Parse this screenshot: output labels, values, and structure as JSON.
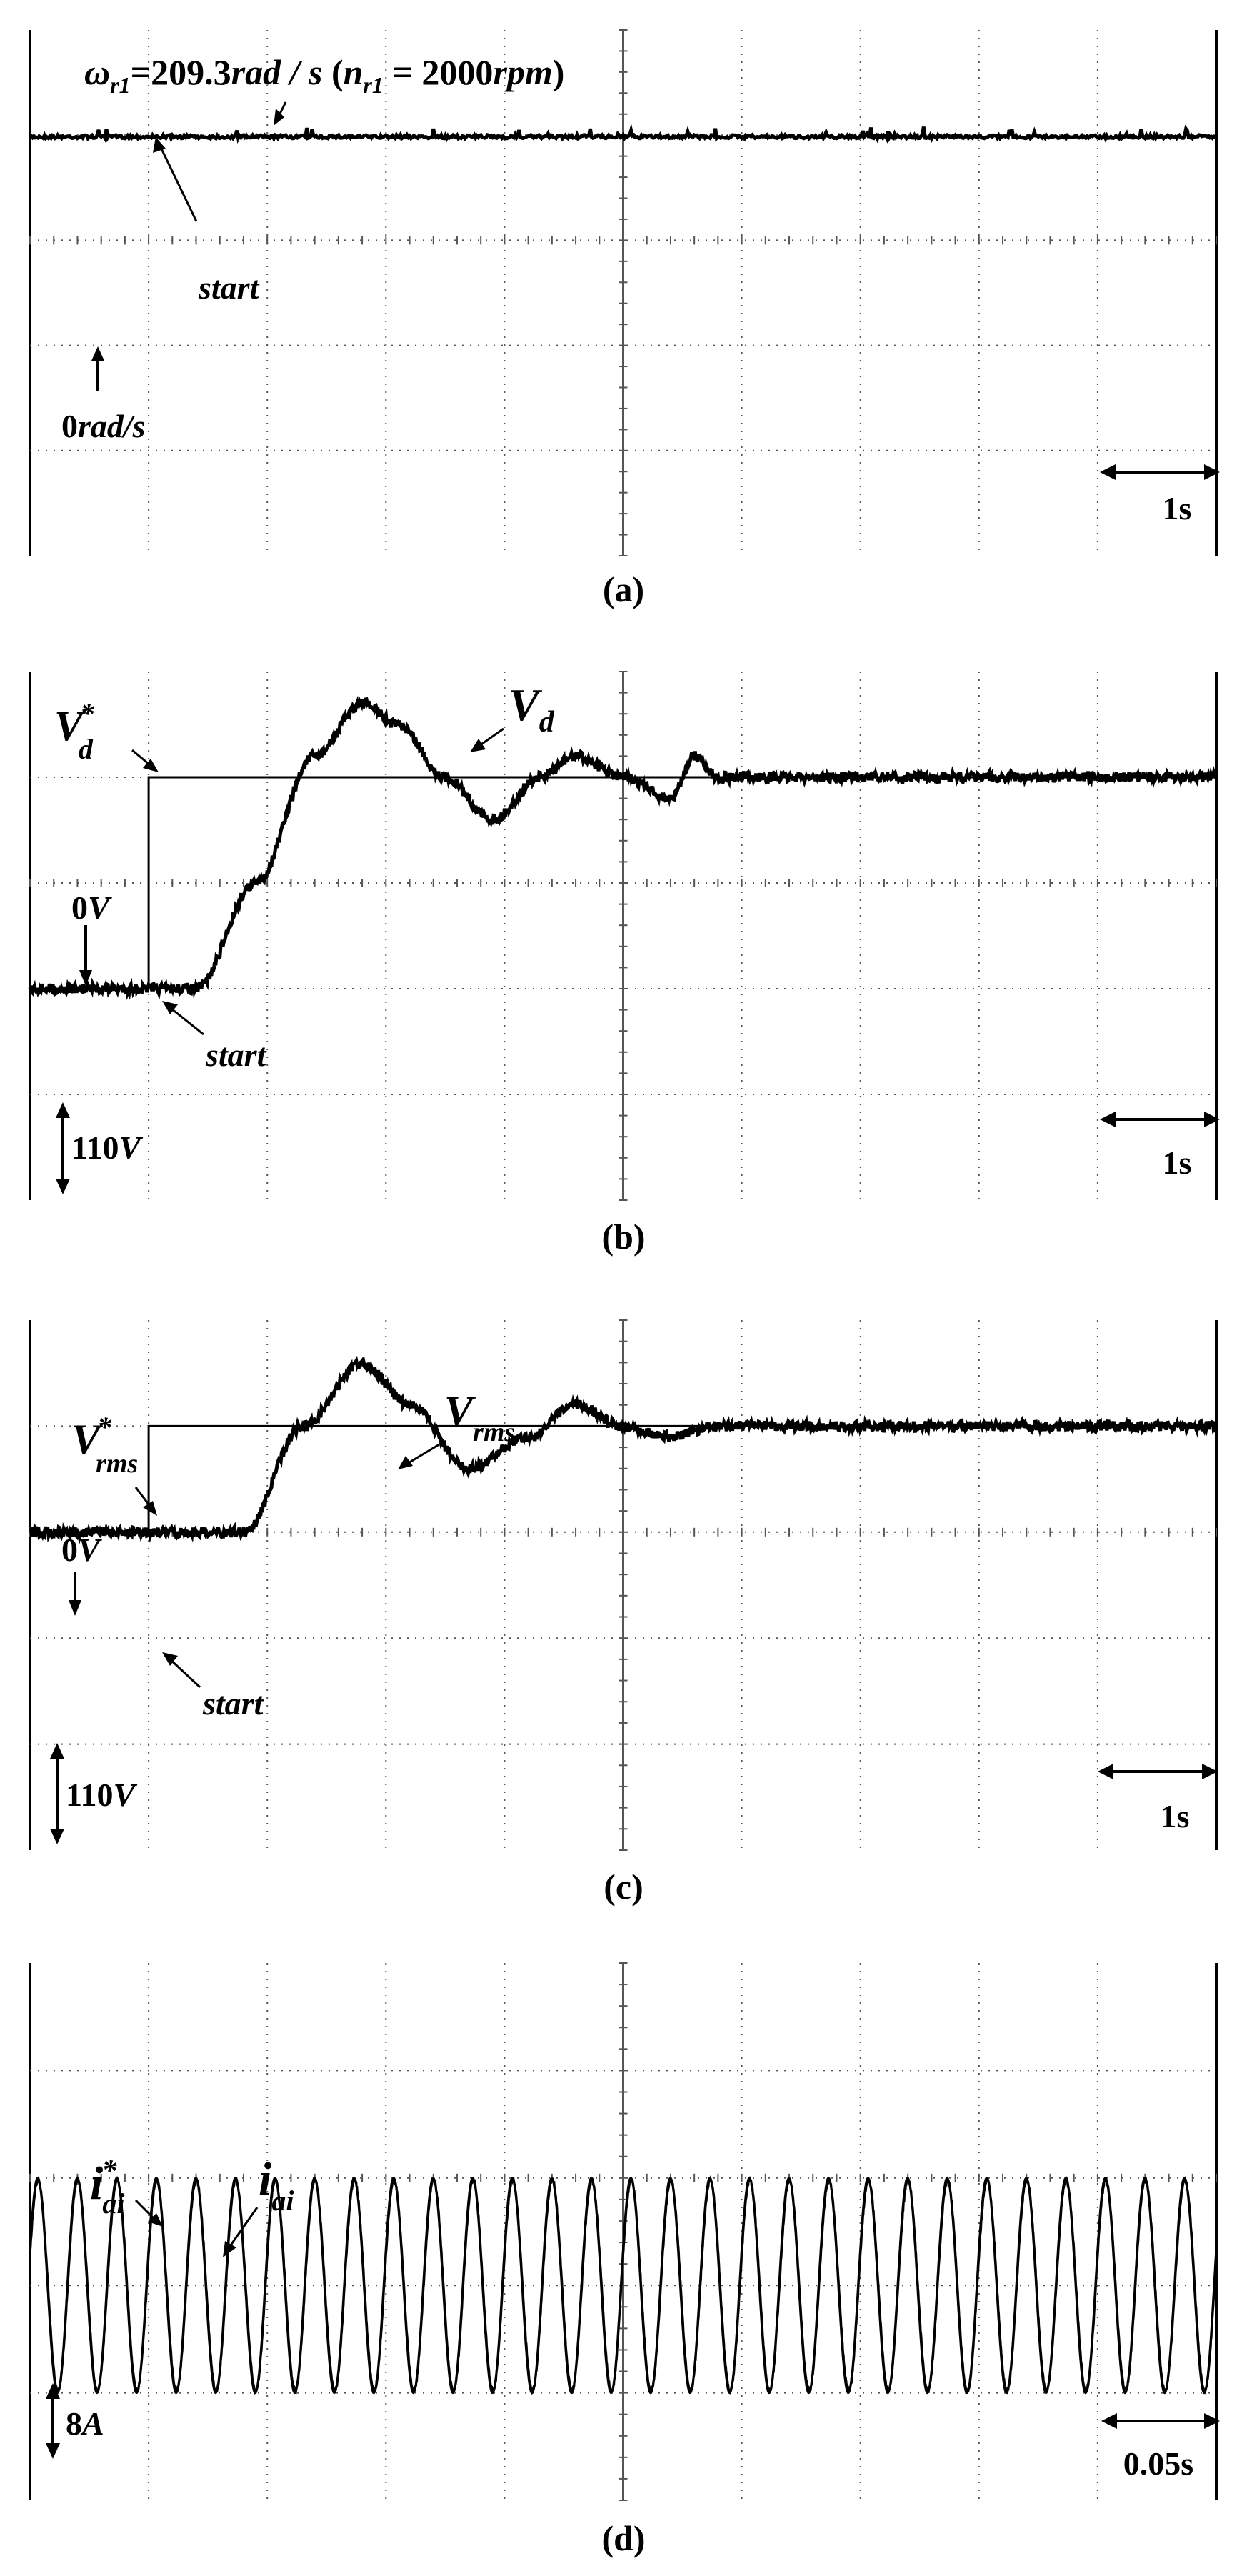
{
  "panels": [
    {
      "caption": "(a)",
      "scale": "1s",
      "labels": {
        "top": {
          "omega": "ω",
          "r1": "r1",
          "eq": "=209.3",
          "unit": "rad / s",
          "paren_open": " (",
          "n": "n",
          "nsub": "r1",
          "neq": " = 2000",
          "rpm": "rpm",
          "paren_close": ")"
        },
        "start": "start",
        "zero_num": "0",
        "zero_unit": "rad/s"
      }
    },
    {
      "caption": "(b)",
      "scale": "1s",
      "vscale_num": "110",
      "vscale_unit": "V",
      "labels": {
        "ref": "V",
        "ref_sup": "*",
        "ref_sub": "d",
        "meas": "V",
        "meas_sub": "d",
        "zero_num": "0",
        "zero_unit": "V",
        "start": "start"
      }
    },
    {
      "caption": "(c)",
      "scale": "1s",
      "vscale_num": "110",
      "vscale_unit": "V",
      "labels": {
        "ref": "V",
        "ref_sup": "*",
        "ref_sub": "rms",
        "meas": "V",
        "meas_sub": "rms",
        "zero_num": "0",
        "zero_unit": "V",
        "start": "start"
      }
    },
    {
      "caption": "(d)",
      "scale": "0.05s",
      "vscale_num": "8",
      "vscale_unit": "A",
      "labels": {
        "ref": "i",
        "ref_sup": "*",
        "ref_sub": "ai",
        "meas": "i",
        "meas_sub": "ai"
      }
    }
  ],
  "chart_data": [
    {
      "type": "line",
      "panel": "(a)",
      "x_unit": "s",
      "x_per_div": 1,
      "x_divisions": 10,
      "x_range": [
        0,
        10
      ],
      "y_divisions": 5,
      "series": [
        {
          "name": "ωr1",
          "x": [
            0,
            10
          ],
          "y": [
            209.3,
            209.3
          ]
        }
      ],
      "annotations": {
        "speed": "209.3 rad/s (2000 rpm)",
        "zero": "0 rad/s",
        "start_x": 1.0
      },
      "grid": true
    },
    {
      "type": "line",
      "panel": "(b)",
      "x_unit": "s",
      "x_per_div": 1,
      "x_divisions": 10,
      "x_range": [
        0,
        10
      ],
      "y_unit": "V",
      "y_per_div": 110,
      "y_divisions": 5,
      "series": [
        {
          "name": "Vd*",
          "x": [
            0,
            1.0,
            1.0,
            10
          ],
          "y": [
            0,
            0,
            220,
            220
          ]
        },
        {
          "name": "Vd",
          "x": [
            0,
            1.4,
            1.9,
            2.4,
            2.8,
            3.1,
            3.5,
            3.9,
            4.3,
            4.6,
            5.0,
            5.4,
            5.6,
            5.8,
            6.0,
            10
          ],
          "y": [
            0,
            0,
            110,
            242,
            297,
            275,
            220,
            176,
            220,
            242,
            220,
            198,
            242,
            220,
            220,
            220
          ]
        }
      ],
      "annotations": {
        "start_x": 1.0
      },
      "grid": true
    },
    {
      "type": "line",
      "panel": "(c)",
      "x_unit": "s",
      "x_per_div": 1,
      "x_divisions": 10,
      "x_range": [
        0,
        10
      ],
      "y_unit": "V",
      "y_per_div": 110,
      "y_divisions": 5,
      "series": [
        {
          "name": "Vrms*",
          "x": [
            0,
            1.0,
            1.0,
            10
          ],
          "y": [
            0,
            0,
            110,
            110
          ]
        },
        {
          "name": "Vrms",
          "x": [
            0,
            1.8,
            2.3,
            2.8,
            3.2,
            3.7,
            4.2,
            4.6,
            5.0,
            5.4,
            5.8,
            10
          ],
          "y": [
            0,
            0,
            110,
            175,
            132,
            66,
            99,
            132,
            110,
            99,
            110,
            110
          ]
        }
      ],
      "annotations": {
        "start_x": 1.0
      },
      "grid": true
    },
    {
      "type": "line",
      "panel": "(d)",
      "x_unit": "s",
      "x_per_div": 0.05,
      "x_divisions": 10,
      "x_range": [
        0,
        0.5
      ],
      "y_unit": "A",
      "y_per_div": 8,
      "y_divisions": 5,
      "series": [
        {
          "name": "iai*",
          "waveform": "sinusoid",
          "amplitude": 8,
          "cycles": 30
        },
        {
          "name": "iai",
          "waveform": "sinusoid",
          "amplitude": 8,
          "cycles": 30
        }
      ],
      "grid": true
    }
  ]
}
